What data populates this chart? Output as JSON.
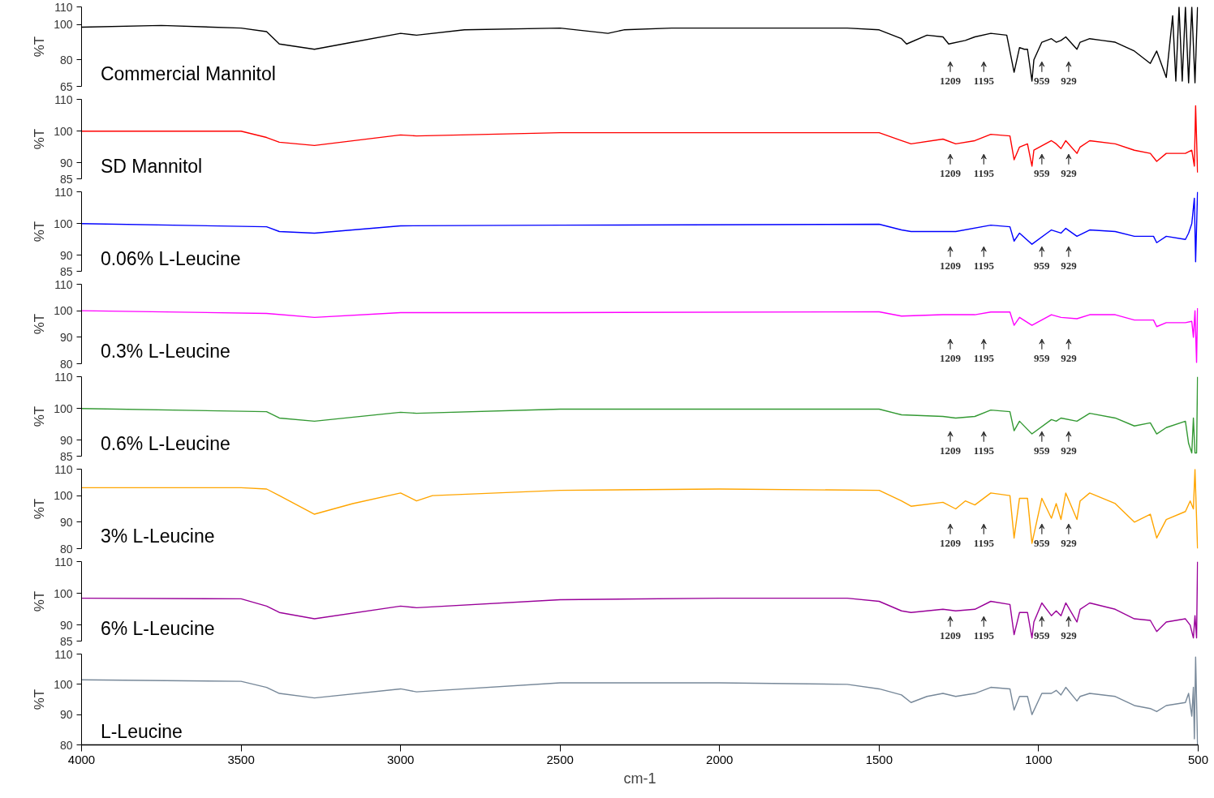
{
  "chart_data": [
    {
      "type": "line",
      "ylabel": "%T",
      "xlim": [
        4000,
        500
      ],
      "ylim": [
        65,
        110
      ],
      "yticks": [
        65,
        80,
        100,
        110
      ],
      "tick_labels": "y",
      "x": [
        4000,
        3750,
        3500,
        3420,
        3380,
        3270,
        3150,
        3000,
        2950,
        2800,
        2500,
        2350,
        2300,
        2150,
        2000,
        1600,
        1500,
        1430,
        1414,
        1350,
        1300,
        1282,
        1230,
        1200,
        1150,
        1100,
        1077,
        1060,
        1045,
        1035,
        1021,
        1015,
        990,
        960,
        945,
        930,
        915,
        880,
        870,
        840,
        800,
        760,
        700,
        650,
        630,
        600,
        580,
        570,
        560,
        550,
        540,
        530,
        520,
        510,
        502
      ],
      "series": [
        {
          "name": "Commercial Mannitol",
          "color": "#000000",
          "values": [
            98.5,
            99.5,
            98,
            96,
            89,
            86,
            90,
            95,
            94,
            97,
            98,
            95,
            97,
            98,
            98,
            98,
            97,
            92,
            89,
            94,
            93,
            89,
            91,
            93,
            95,
            94,
            73,
            87,
            86,
            86,
            68,
            80,
            90,
            92,
            90,
            91,
            93,
            86,
            90,
            92,
            91,
            90,
            85,
            78,
            85,
            70,
            105,
            68,
            110,
            68,
            110,
            67,
            110,
            67,
            110
          ]
        }
      ],
      "annotations": [
        "1209",
        "1195",
        "959",
        "929"
      ]
    },
    {
      "type": "line",
      "ylabel": "%T",
      "xlim": [
        4000,
        500
      ],
      "ylim": [
        85,
        110
      ],
      "yticks": [
        85,
        90,
        100,
        110
      ],
      "tick_labels": "y",
      "x": [
        4000,
        3500,
        3420,
        3380,
        3270,
        3000,
        2950,
        2500,
        2000,
        1500,
        1430,
        1400,
        1300,
        1260,
        1200,
        1150,
        1090,
        1077,
        1060,
        1035,
        1021,
        1015,
        960,
        945,
        930,
        915,
        880,
        870,
        840,
        760,
        700,
        650,
        630,
        600,
        540,
        520,
        512,
        508,
        502
      ],
      "series": [
        {
          "name": "SD Mannitol",
          "color": "#ff0000",
          "values": [
            100,
            100,
            98,
            96.5,
            95.5,
            98.8,
            98.5,
            99.5,
            99.5,
            99.5,
            97,
            96,
            97.5,
            96,
            97,
            99,
            98.5,
            91,
            95,
            96,
            89,
            94,
            97,
            96,
            94.5,
            97,
            93,
            95,
            97,
            96,
            94,
            93,
            90.5,
            93,
            93,
            94,
            89,
            108,
            87
          ]
        }
      ],
      "annotations": [
        "1209",
        "1195",
        "959",
        "929"
      ]
    },
    {
      "type": "line",
      "ylabel": "%T",
      "xlim": [
        4000,
        500
      ],
      "ylim": [
        85,
        110
      ],
      "yticks": [
        85,
        90,
        100,
        110
      ],
      "tick_labels": "y",
      "x": [
        4000,
        3420,
        3380,
        3270,
        3000,
        2500,
        1500,
        1430,
        1400,
        1260,
        1150,
        1090,
        1077,
        1060,
        1021,
        960,
        930,
        915,
        880,
        840,
        760,
        700,
        640,
        630,
        600,
        540,
        530,
        520,
        512,
        508,
        502
      ],
      "series": [
        {
          "name": "0.06% L-Leucine",
          "color": "#0000ff",
          "values": [
            100,
            99,
            97.5,
            97,
            99.3,
            99.5,
            99.8,
            98,
            97.5,
            97.5,
            99.5,
            99,
            94.5,
            97,
            93.5,
            98,
            97,
            98.5,
            96,
            98,
            97.5,
            96,
            96,
            94,
            96,
            95,
            97,
            100,
            108,
            88,
            110
          ]
        }
      ],
      "annotations": [
        "1209",
        "1195",
        "959",
        "929"
      ]
    },
    {
      "type": "line",
      "ylabel": "%T",
      "xlim": [
        4000,
        500
      ],
      "ylim": [
        80,
        110
      ],
      "yticks": [
        80,
        90,
        100,
        110
      ],
      "tick_labels": "y",
      "x": [
        4000,
        3420,
        3270,
        3000,
        2500,
        1500,
        1430,
        1300,
        1200,
        1150,
        1090,
        1077,
        1060,
        1021,
        960,
        930,
        880,
        840,
        760,
        700,
        640,
        630,
        600,
        540,
        520,
        515,
        510,
        505,
        502
      ],
      "series": [
        {
          "name": "0.3% L-Leucine",
          "color": "#ff00ff",
          "values": [
            100,
            99,
            97.5,
            99.3,
            99.3,
            99.6,
            98,
            98.5,
            98.5,
            99.5,
            99.5,
            94.5,
            97.5,
            94.5,
            98.5,
            97.5,
            97,
            98.5,
            98.5,
            96.5,
            96.5,
            94,
            95.5,
            95.5,
            96,
            90,
            100,
            80.5,
            101
          ]
        }
      ],
      "annotations": [
        "1209",
        "1195",
        "959",
        "929"
      ]
    },
    {
      "type": "line",
      "ylabel": "%T",
      "xlim": [
        4000,
        500
      ],
      "ylim": [
        85,
        110
      ],
      "yticks": [
        85,
        90,
        100,
        110
      ],
      "tick_labels": "y",
      "x": [
        4000,
        3420,
        3380,
        3270,
        3000,
        2950,
        2500,
        1500,
        1430,
        1300,
        1260,
        1200,
        1150,
        1090,
        1077,
        1060,
        1021,
        960,
        945,
        930,
        880,
        840,
        760,
        700,
        650,
        630,
        600,
        540,
        530,
        520,
        515,
        510,
        505,
        502
      ],
      "series": [
        {
          "name": "0.6% L-Leucine",
          "color": "#339933",
          "values": [
            100,
            99,
            97,
            96,
            98.8,
            98.5,
            99.8,
            99.8,
            98,
            97.5,
            97,
            97.5,
            99.5,
            99,
            93,
            96,
            92,
            96.5,
            96,
            97,
            96,
            98.5,
            97,
            94.5,
            95.5,
            92,
            94,
            96,
            89,
            86,
            97,
            86,
            86,
            110
          ]
        }
      ],
      "annotations": [
        "1209",
        "1195",
        "959",
        "929"
      ]
    },
    {
      "type": "line",
      "ylabel": "%T",
      "xlim": [
        4000,
        500
      ],
      "ylim": [
        80,
        110
      ],
      "yticks": [
        80,
        90,
        100,
        110
      ],
      "tick_labels": "y",
      "x": [
        4000,
        3500,
        3420,
        3380,
        3270,
        3150,
        3000,
        2950,
        2900,
        2500,
        2000,
        1500,
        1430,
        1400,
        1300,
        1260,
        1230,
        1200,
        1150,
        1090,
        1077,
        1060,
        1035,
        1021,
        990,
        960,
        945,
        930,
        915,
        880,
        870,
        840,
        760,
        700,
        650,
        630,
        600,
        540,
        525,
        515,
        510,
        502
      ],
      "series": [
        {
          "name": "3% L-Leucine",
          "color": "#ffa500",
          "values": [
            103,
            103,
            102.5,
            100,
            93,
            97,
            101,
            98,
            100,
            102,
            102.5,
            102,
            98,
            96,
            97.5,
            95,
            98,
            96.5,
            101,
            100,
            84,
            99,
            99,
            82,
            99,
            91.5,
            97,
            91,
            101,
            91,
            98,
            101,
            97,
            90,
            93,
            84,
            91,
            94,
            98,
            95,
            110,
            80
          ]
        }
      ],
      "annotations": [
        "1209",
        "1195",
        "959",
        "929"
      ]
    },
    {
      "type": "line",
      "ylabel": "%T",
      "xlim": [
        4000,
        500
      ],
      "ylim": [
        85,
        110
      ],
      "yticks": [
        85,
        90,
        100,
        110
      ],
      "tick_labels": "y",
      "x": [
        4000,
        3500,
        3420,
        3380,
        3270,
        3000,
        2950,
        2500,
        2000,
        1600,
        1500,
        1430,
        1400,
        1300,
        1260,
        1200,
        1150,
        1090,
        1077,
        1060,
        1035,
        1021,
        1015,
        990,
        960,
        945,
        930,
        915,
        880,
        870,
        840,
        760,
        700,
        650,
        630,
        600,
        540,
        525,
        515,
        510,
        505,
        502
      ],
      "series": [
        {
          "name": "6% L-Leucine",
          "color": "#990099",
          "values": [
            98.5,
            98.3,
            96,
            94,
            92,
            96,
            95.5,
            98,
            98.5,
            98.5,
            97.5,
            94.5,
            94,
            95,
            94.5,
            95,
            97.5,
            96.5,
            87,
            94,
            94,
            86,
            91,
            97,
            93,
            94.5,
            93,
            97,
            91,
            95,
            97,
            95,
            92,
            91.5,
            88,
            91,
            92,
            90,
            86,
            93,
            86,
            110
          ]
        }
      ],
      "annotations": [
        "1209",
        "1195",
        "959",
        "929"
      ]
    },
    {
      "type": "line",
      "ylabel": "%T",
      "xlabel": "cm-1",
      "xlim": [
        4000,
        500
      ],
      "ylim": [
        80,
        110
      ],
      "yticks": [
        80,
        90,
        100,
        110
      ],
      "xticks": [
        4000,
        3500,
        3000,
        2500,
        2000,
        1500,
        1000,
        500
      ],
      "x": [
        4000,
        3500,
        3420,
        3380,
        3270,
        3000,
        2950,
        2500,
        2000,
        1600,
        1500,
        1430,
        1400,
        1350,
        1300,
        1260,
        1200,
        1150,
        1090,
        1077,
        1060,
        1035,
        1021,
        990,
        960,
        945,
        930,
        915,
        880,
        870,
        840,
        760,
        700,
        650,
        630,
        600,
        540,
        530,
        520,
        515,
        512,
        508,
        502
      ],
      "series": [
        {
          "name": "L-Leucine",
          "color": "#778899",
          "values": [
            101.5,
            101,
            99,
            97,
            95.5,
            98.5,
            97.5,
            100.5,
            100.5,
            100,
            98.5,
            96.5,
            94,
            96,
            97,
            96,
            97,
            99,
            98.5,
            91.5,
            96,
            96,
            90,
            97,
            97,
            98,
            96.5,
            99,
            94.5,
            96,
            97,
            96,
            93,
            92,
            91,
            93,
            94,
            97,
            89.5,
            99,
            82,
            109,
            80
          ]
        }
      ]
    }
  ]
}
